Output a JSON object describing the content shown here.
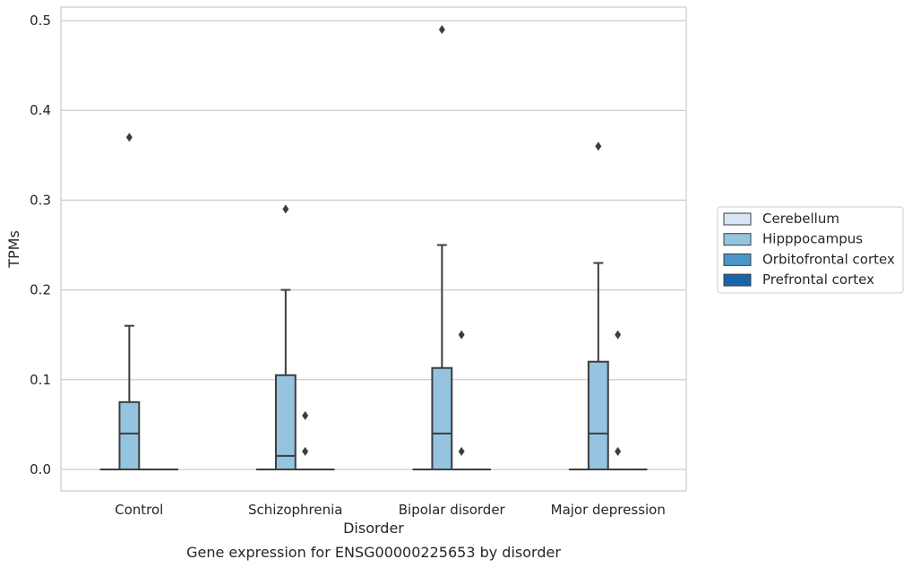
{
  "chart_data": {
    "type": "box",
    "xlabel": "Disorder",
    "ylabel": "TPMs",
    "caption": "Gene expression for ENSG00000225653 by disorder",
    "ylim": [
      -0.024,
      0.515
    ],
    "yticks": [
      0.0,
      0.1,
      0.2,
      0.3,
      0.4,
      0.5
    ],
    "ytick_labels": [
      "0.0",
      "0.1",
      "0.2",
      "0.3",
      "0.4",
      "0.5"
    ],
    "categories": [
      "Control",
      "Schizophrenia",
      "Bipolar disorder",
      "Major depression"
    ],
    "grid": "horizontal",
    "legend": {
      "placement": "right",
      "title": ""
    },
    "series": [
      {
        "name": "Cerebellum",
        "color": "#d6e6f4",
        "boxes": [
          {
            "q1": 0,
            "median": 0,
            "q3": 0,
            "whislo": 0,
            "whishi": 0,
            "fliers": []
          },
          {
            "q1": 0,
            "median": 0,
            "q3": 0,
            "whislo": 0,
            "whishi": 0,
            "fliers": []
          },
          {
            "q1": 0,
            "median": 0,
            "q3": 0,
            "whislo": 0,
            "whishi": 0,
            "fliers": []
          },
          {
            "q1": 0,
            "median": 0,
            "q3": 0,
            "whislo": 0,
            "whishi": 0,
            "fliers": []
          }
        ]
      },
      {
        "name": "Hipppocampus",
        "color": "#94c4df",
        "boxes": [
          {
            "q1": 0,
            "median": 0.04,
            "q3": 0.075,
            "whislo": 0,
            "whishi": 0.16,
            "fliers": [
              0.37
            ]
          },
          {
            "q1": 0,
            "median": 0.015,
            "q3": 0.105,
            "whislo": 0,
            "whishi": 0.2,
            "fliers": [
              0.29
            ]
          },
          {
            "q1": 0,
            "median": 0.04,
            "q3": 0.113,
            "whislo": 0,
            "whishi": 0.25,
            "fliers": [
              0.49
            ]
          },
          {
            "q1": 0,
            "median": 0.04,
            "q3": 0.12,
            "whislo": 0,
            "whishi": 0.23,
            "fliers": [
              0.36
            ]
          }
        ]
      },
      {
        "name": "Orbitofrontal cortex",
        "color": "#4a98c9",
        "boxes": [
          {
            "q1": 0,
            "median": 0,
            "q3": 0,
            "whislo": 0,
            "whishi": 0,
            "fliers": []
          },
          {
            "q1": 0,
            "median": 0,
            "q3": 0,
            "whislo": 0,
            "whishi": 0,
            "fliers": [
              0.02,
              0.06
            ]
          },
          {
            "q1": 0,
            "median": 0,
            "q3": 0,
            "whislo": 0,
            "whishi": 0,
            "fliers": [
              0.02,
              0.15
            ]
          },
          {
            "q1": 0,
            "median": 0,
            "q3": 0,
            "whislo": 0,
            "whishi": 0,
            "fliers": [
              0.02,
              0.15
            ]
          }
        ]
      },
      {
        "name": "Prefrontal cortex",
        "color": "#1764ab",
        "boxes": [
          {
            "q1": 0,
            "median": 0,
            "q3": 0,
            "whislo": 0,
            "whishi": 0,
            "fliers": []
          },
          {
            "q1": 0,
            "median": 0,
            "q3": 0,
            "whislo": 0,
            "whishi": 0,
            "fliers": []
          },
          {
            "q1": 0,
            "median": 0,
            "q3": 0,
            "whislo": 0,
            "whishi": 0,
            "fliers": []
          },
          {
            "q1": 0,
            "median": 0,
            "q3": 0,
            "whislo": 0,
            "whishi": 0,
            "fliers": []
          }
        ]
      }
    ],
    "colors": {
      "grid": "#cccccc",
      "frame": "#cccccc",
      "stroke": "#3d3d3d"
    }
  }
}
